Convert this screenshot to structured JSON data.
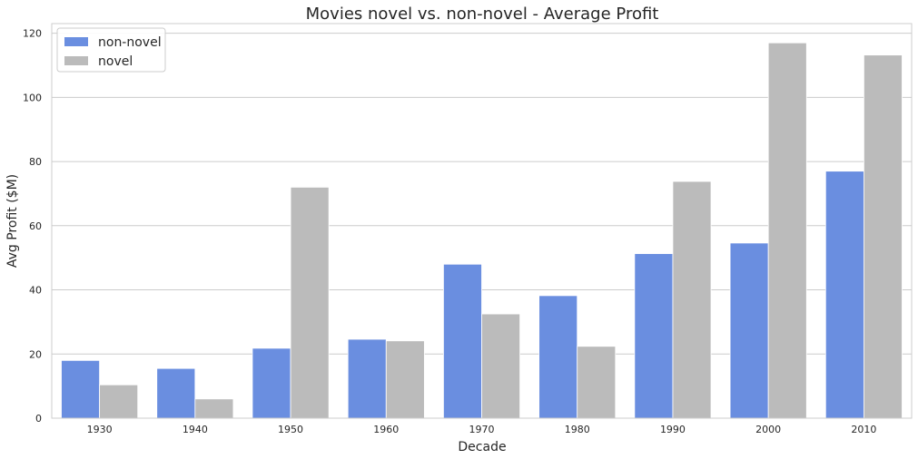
{
  "chart_data": {
    "type": "bar",
    "title": "Movies novel vs. non-novel - Average Profit",
    "xlabel": "Decade",
    "ylabel": "Avg Profit ($M)",
    "categories": [
      "1930",
      "1940",
      "1950",
      "1960",
      "1970",
      "1980",
      "1990",
      "2000",
      "2010"
    ],
    "series": [
      {
        "name": "non-novel",
        "color": "#6a8ee0",
        "values": [
          18.0,
          15.5,
          21.8,
          24.6,
          48.0,
          38.2,
          51.3,
          54.6,
          77.0
        ]
      },
      {
        "name": "novel",
        "color": "#bbbbbb",
        "values": [
          10.4,
          6.0,
          72.0,
          24.1,
          32.5,
          22.4,
          73.8,
          117.0,
          113.2
        ]
      }
    ],
    "ylim": [
      0,
      123
    ],
    "yticks": [
      "0",
      "20",
      "40",
      "60",
      "80",
      "100",
      "120"
    ],
    "grid": true,
    "legend": "top-left"
  }
}
